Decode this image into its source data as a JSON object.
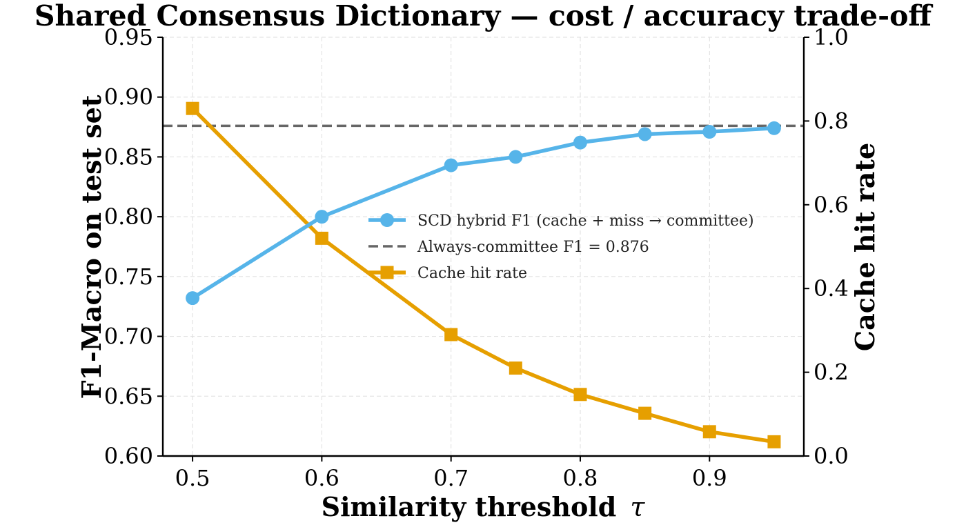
{
  "chart_data": {
    "type": "line",
    "title": "Shared Consensus Dictionary  —  cost / accuracy trade-off",
    "xlabel": "Similarity threshold",
    "xlabel_symbol": "τ",
    "ylabel_left": "F1-Macro on test set",
    "ylabel_right": "Cache hit rate",
    "x": [
      0.5,
      0.6,
      0.7,
      0.75,
      0.8,
      0.85,
      0.9,
      0.95
    ],
    "xticks": [
      "0.5",
      "0.6",
      "0.7",
      "0.8",
      "0.9"
    ],
    "xtick_values": [
      0.5,
      0.6,
      0.7,
      0.8,
      0.9
    ],
    "xlim": [
      0.477,
      0.973
    ],
    "ylim_left": [
      0.6,
      0.95
    ],
    "yticks_left": [
      "0.60",
      "0.65",
      "0.70",
      "0.75",
      "0.80",
      "0.85",
      "0.90",
      "0.95"
    ],
    "ytick_values_left": [
      0.6,
      0.65,
      0.7,
      0.75,
      0.8,
      0.85,
      0.9,
      0.95
    ],
    "ylim_right": [
      0.0,
      1.0
    ],
    "yticks_right": [
      "0.0",
      "0.2",
      "0.4",
      "0.6",
      "0.8",
      "1.0"
    ],
    "ytick_values_right": [
      0.0,
      0.2,
      0.4,
      0.6,
      0.8,
      1.0
    ],
    "grid": true,
    "legend_position": "center-right",
    "series": [
      {
        "name": "SCD hybrid F1  (cache + miss → committee)",
        "axis": "left",
        "marker": "circle",
        "color": "#56B4E9",
        "values": [
          0.732,
          0.8,
          0.843,
          0.85,
          0.862,
          0.869,
          0.871,
          0.874
        ]
      },
      {
        "name": "Always-committee F1 = 0.876",
        "axis": "left",
        "style": "dashed",
        "color": "#666666",
        "constant": 0.876
      },
      {
        "name": "Cache hit rate",
        "axis": "right",
        "marker": "square",
        "color": "#E69F00",
        "values": [
          0.83,
          0.52,
          0.29,
          0.21,
          0.147,
          0.102,
          0.058,
          0.034
        ]
      }
    ]
  }
}
